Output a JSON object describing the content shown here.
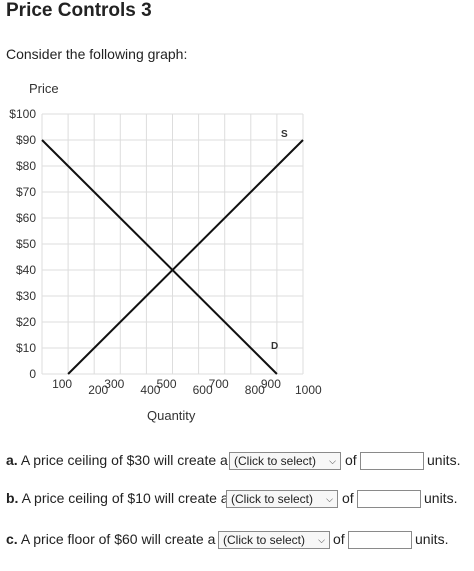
{
  "header": {
    "title": "Price Controls 3"
  },
  "intro": "Consider the following graph:",
  "chart_data": {
    "type": "line",
    "ylabel": "Price",
    "xlabel": "Quantity",
    "xlim": [
      0,
      1000
    ],
    "ylim": [
      0,
      100
    ],
    "y_ticks": [
      "$100",
      "$90",
      "$80",
      "$70",
      "$60",
      "$50",
      "$40",
      "$30",
      "$20",
      "$10",
      "0"
    ],
    "y_tick_values": [
      100,
      90,
      80,
      70,
      60,
      50,
      40,
      30,
      20,
      10,
      0
    ],
    "x_ticks": [
      "100",
      "200",
      "300",
      "400",
      "500",
      "600",
      "700",
      "800",
      "900",
      "1000"
    ],
    "x_tick_values": [
      100,
      200,
      300,
      400,
      500,
      600,
      700,
      800,
      900,
      1000
    ],
    "grid": true,
    "series": [
      {
        "name": "S",
        "x": [
          100,
          1000
        ],
        "y": [
          0,
          90
        ]
      },
      {
        "name": "D",
        "x": [
          0,
          900
        ],
        "y": [
          90,
          0
        ]
      }
    ]
  },
  "questions": [
    {
      "letter": "a.",
      "text": "A price ceiling of $30 will create a",
      "select": "(Click to select)",
      "of": "of",
      "units": "units."
    },
    {
      "letter": "b.",
      "text": "A price ceiling of $10 will create a",
      "select": "(Click to select)",
      "of": "of",
      "units": "units."
    },
    {
      "letter": "c.",
      "text": "A price floor of $60 will create a",
      "select": "(Click to select)",
      "of": "of",
      "units": "units."
    }
  ],
  "colors": {
    "line": "#111111",
    "grid": "#dddddd",
    "axis_text": "#333333"
  }
}
